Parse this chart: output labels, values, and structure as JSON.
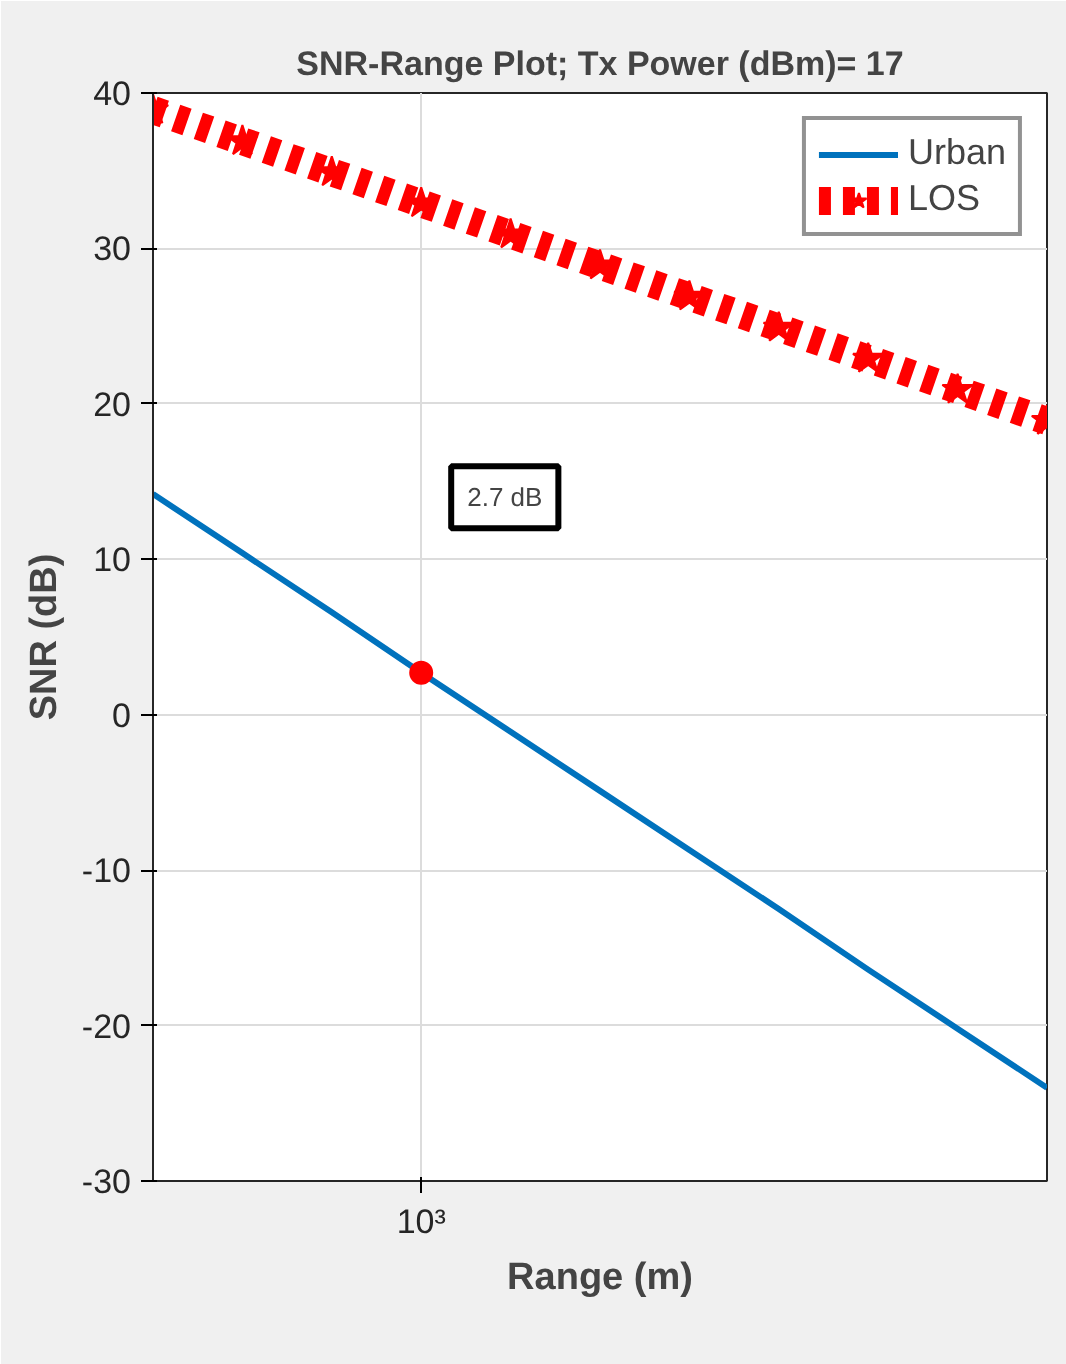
{
  "chart_data": {
    "type": "line",
    "title": "SNR-Range Plot; Tx Power (dBm)= 17",
    "xlabel": "Range (m)",
    "ylabel": "SNR (dB)",
    "categories": [
      null,
      null,
      null,
      "10³",
      null,
      null,
      null,
      null,
      null,
      null,
      null
    ],
    "ylim": [
      -30,
      40
    ],
    "yticks": [
      -30,
      -20,
      -10,
      0,
      10,
      20,
      30,
      40
    ],
    "grid": true,
    "legend": "top right",
    "series": [
      {
        "name": "Urban",
        "color": "#0072bd",
        "marker": "none",
        "line_style": "solid",
        "values": [
          14.2,
          10.4,
          6.6,
          2.7,
          -1.1,
          -4.9,
          -8.7,
          -12.5,
          -16.4,
          -20.2,
          -24.0
        ]
      },
      {
        "name": "LOS",
        "color": "#ff0000",
        "marker": "star",
        "line_style": "dashed",
        "values": [
          38.9,
          36.9,
          34.9,
          32.9,
          30.9,
          28.9,
          26.9,
          24.9,
          22.9,
          20.9,
          18.9
        ]
      },
      {
        "type": "scatter",
        "color": "#ff0000",
        "marker": "circle",
        "values": [
          null,
          null,
          null,
          2.7,
          null,
          null,
          null,
          null,
          null,
          null,
          null
        ]
      }
    ],
    "annotations": [
      "2.7 dB"
    ]
  }
}
